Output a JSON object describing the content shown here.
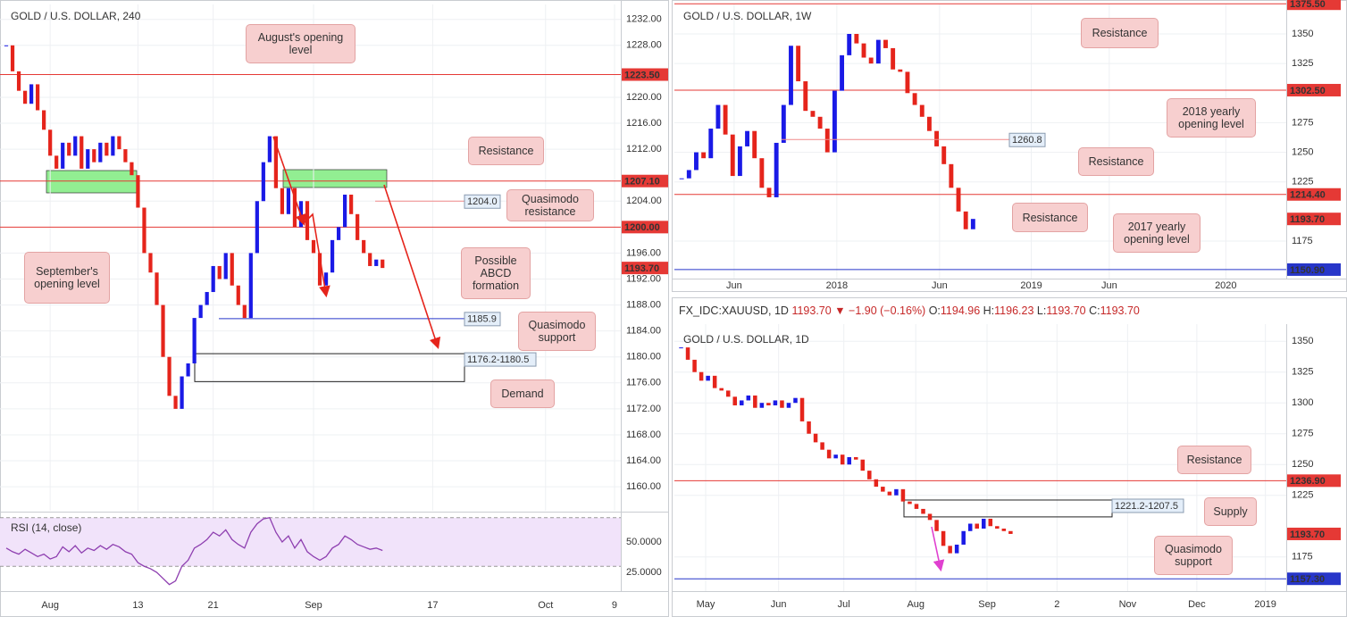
{
  "chart_data": [
    {
      "type": "candlestick",
      "title": "GOLD / U.S. DOLLAR, 240",
      "values": [
        1228,
        1224,
        1221,
        1219,
        1222,
        1218,
        1215,
        1211,
        1209,
        1213,
        1211,
        1214,
        1209,
        1212,
        1210,
        1213,
        1211,
        1214,
        1212,
        1210,
        1208,
        1203,
        1196,
        1193,
        1188,
        1180,
        1174,
        1172,
        1177,
        1179,
        1186,
        1188,
        1190,
        1194,
        1192,
        1196,
        1191,
        1188,
        1186,
        1196,
        1204,
        1210,
        1214,
        1206,
        1202,
        1206,
        1200,
        1204,
        1198,
        1196,
        1191,
        1193,
        1198,
        1200,
        1205,
        1202,
        1198,
        1196,
        1194,
        1195,
        1193.7
      ],
      "colors": {
        "up": "#1a1ae6",
        "down": "#e5241b"
      },
      "xlim": [
        -1,
        98
      ],
      "xticks": [
        {
          "value": 7,
          "label": "Aug"
        },
        {
          "value": 21,
          "label": "13"
        },
        {
          "value": 33,
          "label": "21"
        },
        {
          "value": 49,
          "label": "Sep"
        },
        {
          "value": 68,
          "label": "17"
        },
        {
          "value": 86,
          "label": "Oct"
        },
        {
          "value": 97,
          "label": "9"
        }
      ],
      "ylim": [
        1156.3,
        1234.3
      ],
      "yticks": [
        {
          "value": 1160,
          "label": "1160.00"
        },
        {
          "value": 1164,
          "label": "1164.00"
        },
        {
          "value": 1168,
          "label": "1168.00"
        },
        {
          "value": 1172,
          "label": "1172.00"
        },
        {
          "value": 1176,
          "label": "1176.00"
        },
        {
          "value": 1180,
          "label": "1180.00"
        },
        {
          "value": 1184,
          "label": "1184.00"
        },
        {
          "value": 1188,
          "label": "1188.00"
        },
        {
          "value": 1192,
          "label": "1192.00"
        },
        {
          "value": 1196,
          "label": "1196.00"
        },
        {
          "value": 1204,
          "label": "1204.00"
        },
        {
          "value": 1212,
          "label": "1212.00"
        },
        {
          "value": 1216,
          "label": "1216.00"
        },
        {
          "value": 1220,
          "label": "1220.00"
        },
        {
          "value": 1228,
          "label": "1228.00"
        },
        {
          "value": 1232,
          "label": "1232.00"
        }
      ],
      "grid": true,
      "levels": [
        {
          "value": 1223.5,
          "label": "1223.50",
          "color": "#e53935"
        },
        {
          "value": 1207.1,
          "label": "1207.10",
          "color": "#e53935"
        },
        {
          "value": 1200,
          "label": "1200.00",
          "color": "#e53935"
        }
      ],
      "last": {
        "value": 1193.7,
        "label": "1193.70",
        "color": "#e53935"
      },
      "markers": [
        {
          "value": 1204,
          "label": "1204.0",
          "color": "#f08a8a"
        },
        {
          "value": 1185.9,
          "label": "1185.9",
          "color": "#2736c9"
        }
      ],
      "zones": [
        {
          "low": 1176.2,
          "high": 1180.5,
          "label": "1176.2-1180.5"
        }
      ],
      "annotations": [
        "August's opening level",
        "Resistance",
        "Quasimodo resistance",
        "Possible ABCD formation",
        "Quasimodo support",
        "Demand",
        "September's opening level"
      ]
    },
    {
      "type": "line",
      "title": "RSI (14, close)",
      "values": [
        45,
        42,
        40,
        44,
        41,
        38,
        40,
        36,
        38,
        46,
        42,
        47,
        41,
        45,
        43,
        47,
        44,
        48,
        46,
        42,
        40,
        33,
        30,
        28,
        25,
        20,
        15,
        18,
        30,
        35,
        45,
        48,
        52,
        58,
        55,
        60,
        52,
        48,
        45,
        58,
        65,
        69,
        70,
        58,
        50,
        55,
        45,
        52,
        42,
        38,
        35,
        38,
        45,
        48,
        55,
        52,
        48,
        46,
        44,
        45,
        43
      ],
      "color": "#8e3fb0",
      "band": [
        30,
        70
      ],
      "xlim": [
        -1,
        98
      ],
      "ylim": [
        9.6,
        73.5
      ],
      "yticks": [
        {
          "value": 50,
          "label": "50.0000"
        },
        {
          "value": 25,
          "label": "25.0000"
        }
      ]
    },
    {
      "type": "candlestick",
      "title": "GOLD / U.S. DOLLAR, 1W",
      "values": [
        1228,
        1235,
        1250,
        1245,
        1270,
        1290,
        1265,
        1230,
        1255,
        1268,
        1245,
        1220,
        1212,
        1258,
        1290,
        1340,
        1310,
        1285,
        1280,
        1270,
        1250,
        1302,
        1332,
        1350,
        1342,
        1330,
        1325,
        1345,
        1338,
        1320,
        1318,
        1300,
        1290,
        1280,
        1268,
        1255,
        1240,
        1220,
        1200,
        1185,
        1193.7
      ],
      "colors": {
        "up": "#1a1ae6",
        "down": "#e5241b"
      },
      "xlim": [
        -1,
        83
      ],
      "xticks": [
        {
          "value": 7.2,
          "label": "Jun"
        },
        {
          "value": 21.3,
          "label": "2018"
        },
        {
          "value": 35.4,
          "label": "Jun"
        },
        {
          "value": 48,
          "label": "2019"
        },
        {
          "value": 58.7,
          "label": "Jun"
        },
        {
          "value": 74.7,
          "label": "2020"
        }
      ],
      "ylim": [
        1143.3,
        1374.9
      ],
      "yticks": [
        1175,
        1225,
        1250,
        1275,
        1325,
        1350
      ],
      "grid": true,
      "levels": [
        {
          "value": 1375.5,
          "label": "1375.50",
          "color": "#e53935"
        },
        {
          "value": 1302.5,
          "label": "1302.50",
          "color": "#e53935"
        },
        {
          "value": 1214.4,
          "label": "1214.40",
          "color": "#e53935"
        },
        {
          "value": 1150.9,
          "label": "1150.90",
          "color": "#2736c9"
        }
      ],
      "last": {
        "value": 1193.7,
        "label": "1193.70",
        "color": "#e53935"
      },
      "markers": [
        {
          "value": 1260.8,
          "label": "1260.8",
          "color": "#f08a8a"
        }
      ],
      "annotations": [
        "Resistance",
        "2018 yearly opening level",
        "Resistance",
        "Resistance",
        "2017 yearly opening level"
      ]
    },
    {
      "type": "candlestick",
      "title": "GOLD / U.S. DOLLAR, 1D",
      "header": {
        "symbol": "FX_IDC:XAUUSD, 1D",
        "price": "1193.70",
        "change": "−1.90 (−0.16%)",
        "ohlc": [
          {
            "label": "O:",
            "value": "1194.96"
          },
          {
            "label": "H:",
            "value": "1196.23"
          },
          {
            "label": "L:",
            "value": "1193.70"
          },
          {
            "label": "C:",
            "value": "1193.70"
          }
        ]
      },
      "values": [
        1345,
        1335,
        1325,
        1318,
        1322,
        1312,
        1310,
        1305,
        1298,
        1302,
        1306,
        1296,
        1300,
        1298,
        1302,
        1296,
        1300,
        1304,
        1285,
        1275,
        1268,
        1262,
        1255,
        1258,
        1250,
        1256,
        1254,
        1245,
        1238,
        1232,
        1228,
        1225,
        1230,
        1220,
        1218,
        1214,
        1210,
        1205,
        1196,
        1184,
        1178,
        1185,
        1196,
        1202,
        1198,
        1206,
        1200,
        1198,
        1196,
        1193.7
      ],
      "colors": {
        "up": "#1a1ae6",
        "down": "#e5241b"
      },
      "xlim": [
        -1,
        90
      ],
      "xticks": [
        {
          "value": 3.65,
          "label": "May"
        },
        {
          "value": 14.5,
          "label": "Jun"
        },
        {
          "value": 24.2,
          "label": "Jul"
        },
        {
          "value": 34.9,
          "label": "Aug"
        },
        {
          "value": 45.5,
          "label": "Sep"
        },
        {
          "value": 55.9,
          "label": "2"
        },
        {
          "value": 66.4,
          "label": "Nov"
        },
        {
          "value": 76.7,
          "label": "Dec"
        },
        {
          "value": 86.9,
          "label": "2019"
        }
      ],
      "ylim": [
        1147.3,
        1363.9
      ],
      "yticks": [
        1175,
        1225,
        1250,
        1275,
        1300,
        1325,
        1350
      ],
      "grid": true,
      "levels": [
        {
          "value": 1236.9,
          "label": "1236.90",
          "color": "#e53935"
        },
        {
          "value": 1157.3,
          "label": "1157.30",
          "color": "#2736c9"
        }
      ],
      "last": {
        "value": 1193.7,
        "label": "1193.70",
        "color": "#e53935"
      },
      "zones": [
        {
          "low": 1207.5,
          "high": 1221.2,
          "label": "1221.2-1207.5"
        }
      ],
      "annotations": [
        "Resistance",
        "Supply",
        "Quasimodo support"
      ]
    }
  ]
}
